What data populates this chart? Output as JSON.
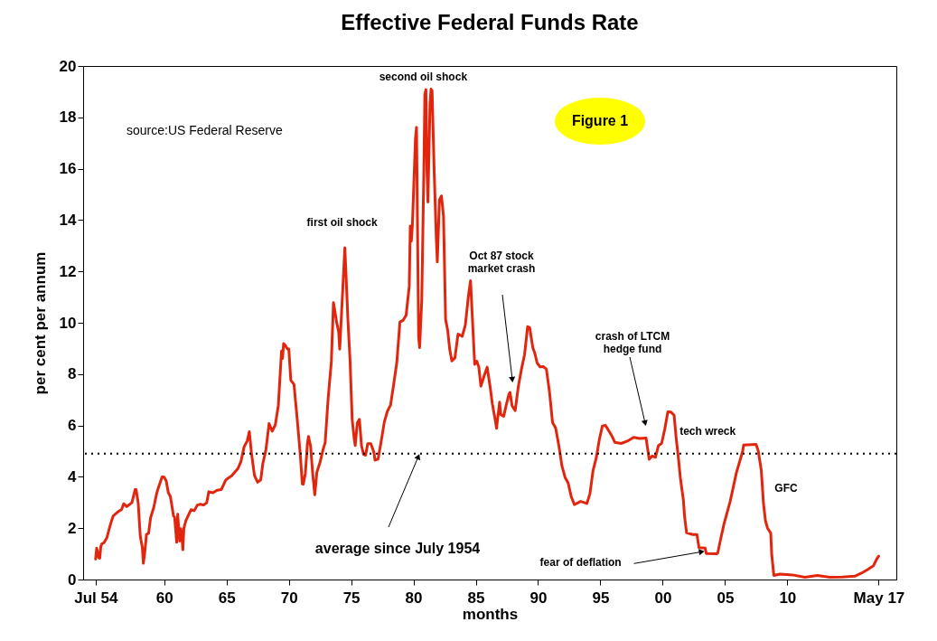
{
  "chart_data": {
    "type": "line",
    "title": "Effective Federal Funds Rate",
    "xlabel": "months",
    "ylabel": "per cent per annum",
    "x": [
      "1954-07",
      "1954-08",
      "1954-09",
      "1954-10",
      "1954-11",
      "1954-12",
      "1955-01",
      "1955-03",
      "1955-06",
      "1955-08",
      "1955-10",
      "1955-12",
      "1956-04",
      "1956-08",
      "1956-10",
      "1957-01",
      "1957-06",
      "1957-09",
      "1957-10",
      "1957-12",
      "1958-02",
      "1958-04",
      "1958-05",
      "1958-06",
      "1958-08",
      "1958-10",
      "1958-12",
      "1959-03",
      "1959-06",
      "1959-09",
      "1959-11",
      "1960-01",
      "1960-03",
      "1960-05",
      "1960-07",
      "1960-08",
      "1960-10",
      "1960-11",
      "1960-12",
      "1961-01",
      "1961-02",
      "1961-03",
      "1961-04",
      "1961-05",
      "1961-06",
      "1961-07",
      "1961-08",
      "1961-10",
      "1961-12",
      "1962-03",
      "1962-06",
      "1962-09",
      "1962-12",
      "1963-03",
      "1963-06",
      "1963-08",
      "1963-12",
      "1964-04",
      "1964-08",
      "1964-12",
      "1965-01",
      "1965-06",
      "1965-12",
      "1966-03",
      "1966-06",
      "1966-09",
      "1966-11",
      "1967-01",
      "1967-04",
      "1967-07",
      "1967-10",
      "1967-12",
      "1968-03",
      "1968-06",
      "1968-09",
      "1968-12",
      "1969-03",
      "1969-06",
      "1969-07",
      "1969-08",
      "1969-09",
      "1969-12",
      "1970-01",
      "1970-03",
      "1970-06",
      "1970-09",
      "1970-12",
      "1971-02",
      "1971-03",
      "1971-05",
      "1971-07",
      "1971-08",
      "1971-10",
      "1971-12",
      "1972-02",
      "1972-04",
      "1972-07",
      "1972-10",
      "1972-12",
      "1973-03",
      "1973-06",
      "1973-08",
      "1973-09",
      "1973-11",
      "1974-01",
      "1974-02",
      "1974-04",
      "1974-07",
      "1974-08",
      "1974-10",
      "1974-12",
      "1975-02",
      "1975-04",
      "1975-05",
      "1975-07",
      "1975-09",
      "1975-11",
      "1976-01",
      "1976-03",
      "1976-05",
      "1976-08",
      "1976-11",
      "1976-12",
      "1977-03",
      "1977-06",
      "1977-09",
      "1977-12",
      "1978-03",
      "1978-06",
      "1978-09",
      "1978-12",
      "1979-03",
      "1979-06",
      "1979-09",
      "1979-10",
      "1979-11",
      "1979-12",
      "1980-03",
      "1980-04",
      "1980-06",
      "1980-07",
      "1980-09",
      "1980-11",
      "1980-12",
      "1981-01",
      "1981-02",
      "1981-03",
      "1981-05",
      "1981-06",
      "1981-07",
      "1981-09",
      "1981-11",
      "1981-12",
      "1982-02",
      "1982-04",
      "1982-06",
      "1982-08",
      "1982-10",
      "1982-12",
      "1983-02",
      "1983-05",
      "1983-08",
      "1983-12",
      "1984-03",
      "1984-04",
      "1984-06",
      "1984-08",
      "1984-10",
      "1984-12",
      "1985-02",
      "1985-04",
      "1985-06",
      "1985-09",
      "1985-12",
      "1986-03",
      "1986-05",
      "1986-08",
      "1986-09",
      "1986-12",
      "1987-01",
      "1987-04",
      "1987-06",
      "1987-09",
      "1987-10",
      "1987-12",
      "1988-03",
      "1988-06",
      "1988-09",
      "1988-12",
      "1989-03",
      "1989-05",
      "1989-08",
      "1989-10",
      "1989-12",
      "1990-03",
      "1990-06",
      "1990-09",
      "1990-12",
      "1991-03",
      "1991-06",
      "1991-09",
      "1991-12",
      "1992-03",
      "1992-06",
      "1992-09",
      "1992-12",
      "1993-06",
      "1993-12",
      "1994-03",
      "1994-06",
      "1994-09",
      "1994-12",
      "1995-03",
      "1995-06",
      "1995-09",
      "1995-12",
      "1996-03",
      "1996-09",
      "1997-03",
      "1997-09",
      "1998-03",
      "1998-09",
      "1998-12",
      "1999-03",
      "1999-06",
      "1999-09",
      "1999-12",
      "2000-03",
      "2000-06",
      "2000-09",
      "2000-12",
      "2001-02",
      "2001-04",
      "2001-06",
      "2001-09",
      "2001-10",
      "2001-12",
      "2002-06",
      "2002-10",
      "2002-12",
      "2003-06",
      "2003-07",
      "2004-05",
      "2004-06",
      "2004-09",
      "2004-12",
      "2005-06",
      "2005-12",
      "2006-06",
      "2006-07",
      "2007-07",
      "2007-09",
      "2007-12",
      "2008-02",
      "2008-04",
      "2008-06",
      "2008-09",
      "2008-10",
      "2008-12",
      "2009-06",
      "2010-06",
      "2011-06",
      "2012-06",
      "2013-06",
      "2014-06",
      "2015-06",
      "2015-12",
      "2016-06",
      "2016-12",
      "2017-03",
      "2017-05"
    ],
    "series": [
      {
        "color": "#e2260e",
        "values": [
          0.8,
          1.22,
          1.07,
          0.85,
          0.83,
          1.28,
          1.39,
          1.43,
          1.64,
          1.96,
          2.24,
          2.48,
          2.62,
          2.73,
          2.95,
          2.84,
          3.0,
          3.5,
          3.5,
          2.98,
          1.67,
          1.26,
          0.63,
          0.93,
          1.76,
          1.8,
          2.42,
          2.8,
          3.39,
          3.76,
          4.0,
          3.99,
          3.84,
          3.39,
          3.23,
          2.98,
          2.47,
          2.44,
          1.98,
          1.45,
          2.54,
          2.02,
          1.5,
          1.98,
          1.73,
          1.16,
          2.0,
          2.3,
          2.48,
          2.72,
          2.68,
          2.9,
          2.93,
          2.9,
          2.99,
          3.42,
          3.38,
          3.48,
          3.5,
          3.85,
          3.9,
          4.04,
          4.32,
          4.6,
          5.17,
          5.4,
          5.76,
          4.94,
          4.05,
          3.79,
          3.88,
          4.51,
          5.05,
          6.07,
          5.78,
          6.02,
          6.79,
          8.9,
          8.61,
          9.19,
          9.15,
          8.97,
          8.98,
          7.76,
          7.6,
          6.29,
          4.9,
          3.72,
          3.71,
          4.14,
          5.31,
          5.57,
          5.2,
          4.14,
          3.3,
          4.17,
          4.55,
          5.06,
          5.33,
          7.09,
          8.49,
          10.78,
          10.55,
          10.03,
          9.65,
          8.97,
          10.51,
          12.92,
          12.01,
          10.06,
          8.53,
          6.24,
          5.49,
          5.22,
          6.1,
          6.24,
          5.22,
          4.87,
          4.84,
          5.29,
          5.29,
          4.95,
          4.65,
          4.69,
          5.39,
          6.14,
          6.56,
          6.79,
          7.6,
          8.45,
          10.03,
          10.09,
          10.29,
          11.43,
          13.77,
          13.18,
          13.78,
          17.19,
          17.61,
          9.47,
          9.03,
          10.87,
          15.85,
          18.9,
          19.08,
          15.93,
          14.7,
          18.52,
          19.1,
          19.04,
          15.87,
          13.31,
          12.37,
          14.78,
          14.94,
          14.15,
          10.12,
          9.71,
          8.95,
          8.51,
          8.63,
          9.56,
          9.47,
          9.91,
          10.29,
          11.06,
          11.64,
          9.99,
          8.38,
          8.5,
          8.27,
          7.53,
          7.92,
          8.27,
          7.48,
          6.85,
          6.17,
          5.89,
          6.91,
          6.43,
          6.36,
          6.73,
          7.22,
          7.29,
          6.77,
          6.58,
          7.51,
          8.19,
          8.76,
          9.85,
          9.81,
          9.02,
          8.8,
          8.45,
          8.28,
          8.29,
          8.2,
          7.31,
          6.12,
          5.9,
          5.22,
          4.43,
          3.98,
          3.76,
          3.22,
          2.92,
          3.04,
          2.96,
          3.34,
          4.25,
          4.73,
          5.45,
          5.98,
          6.0,
          5.8,
          5.6,
          5.34,
          5.3,
          5.39,
          5.54,
          5.49,
          5.51,
          4.68,
          4.81,
          4.76,
          5.22,
          5.3,
          5.85,
          6.53,
          6.52,
          6.4,
          5.49,
          4.8,
          3.97,
          3.07,
          2.49,
          1.82,
          1.75,
          1.75,
          1.24,
          1.22,
          1.01,
          1.0,
          1.03,
          1.61,
          2.16,
          3.04,
          4.16,
          4.99,
          5.24,
          5.26,
          5.02,
          4.24,
          2.98,
          2.28,
          2.0,
          1.81,
          0.97,
          0.16,
          0.21,
          0.18,
          0.09,
          0.16,
          0.09,
          0.1,
          0.13,
          0.24,
          0.38,
          0.54,
          0.79,
          0.91
        ]
      }
    ],
    "xlim": [
      "1953-07",
      "2018-10"
    ],
    "ylim": [
      0,
      20
    ],
    "xticks": [
      {
        "value": "1954-07",
        "label": "Jul 54"
      },
      {
        "value": "1960-01",
        "label": "60"
      },
      {
        "value": "1965-01",
        "label": "65"
      },
      {
        "value": "1970-01",
        "label": "70"
      },
      {
        "value": "1975-01",
        "label": "75"
      },
      {
        "value": "1980-01",
        "label": "80"
      },
      {
        "value": "1985-01",
        "label": "85"
      },
      {
        "value": "1990-01",
        "label": "90"
      },
      {
        "value": "1995-01",
        "label": "95"
      },
      {
        "value": "2000-01",
        "label": "00"
      },
      {
        "value": "2005-01",
        "label": "05"
      },
      {
        "value": "2010-01",
        "label": "10"
      },
      {
        "value": "2017-05",
        "label": "May 17"
      }
    ],
    "yticks": [
      0,
      2,
      4,
      6,
      8,
      10,
      12,
      14,
      16,
      18,
      20
    ],
    "grid": false,
    "marker": "none",
    "line_style": "solid",
    "ref_lines": [
      {
        "axis": "y",
        "value": 4.9,
        "label": "average since July 1954",
        "color": "#000000",
        "line_style": "dotted"
      }
    ],
    "annotations": [
      "source:US Federal Reserve",
      "Figure 1",
      "Oct 87 stock\nmarket crash",
      "crash of LTCM\nhedge fund",
      "GFC",
      {
        "text": "first oil shock",
        "x": "1974-07",
        "y": 12.92
      },
      {
        "text": "second oil shock",
        "x": "1981-01",
        "y": 19.08
      },
      {
        "text": "tech wreck",
        "x": "2000-06",
        "y": 6.53
      },
      {
        "text": "fear of deflation",
        "x": "2003-07",
        "y": 1.01
      }
    ]
  }
}
